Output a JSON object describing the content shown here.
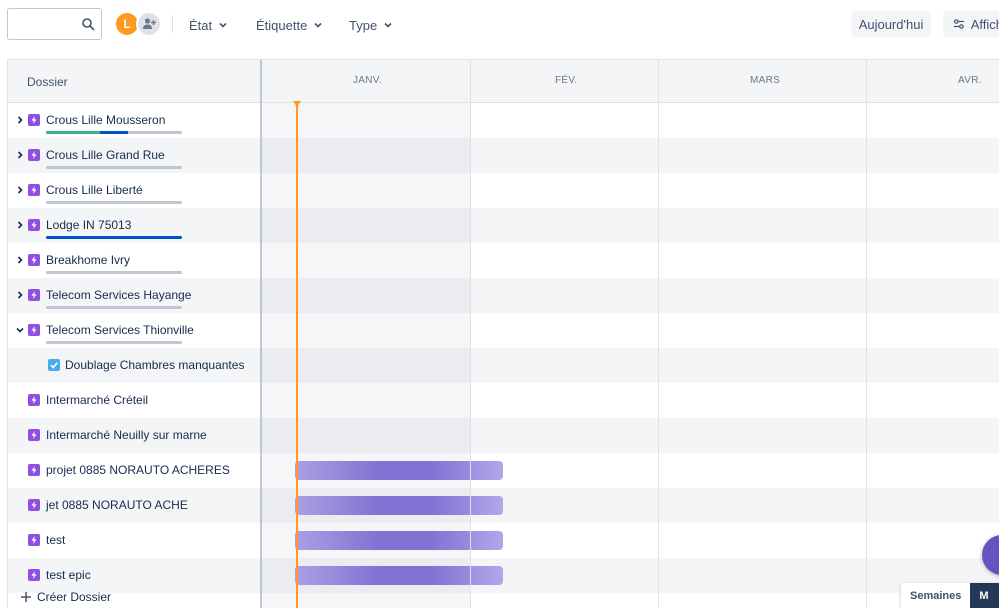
{
  "toolbar": {
    "search_placeholder": "",
    "avatar_initial": "L",
    "filters": [
      "État",
      "Étiquette",
      "Type"
    ],
    "today_label": "Aujourd'hui",
    "view_label": "Affich"
  },
  "grid": {
    "header_label": "Dossier",
    "months": [
      "JANV.",
      "FÉV.",
      "MARS",
      "AVR."
    ]
  },
  "rows": [
    {
      "label": "Crous Lille Mousseron",
      "expand": "collapsed",
      "progress": {
        "done": 0.4,
        "in_progress": 0.2
      }
    },
    {
      "label": "Crous Lille Grand Rue",
      "expand": "collapsed",
      "progress": {
        "done": 0,
        "in_progress": 0
      }
    },
    {
      "label": "Crous Lille Liberté",
      "expand": "collapsed",
      "progress": {
        "done": 0,
        "in_progress": 0
      }
    },
    {
      "label": "Lodge IN 75013",
      "expand": "collapsed",
      "progress": {
        "done": 0,
        "in_progress": 1
      }
    },
    {
      "label": "Breakhome Ivry",
      "expand": "collapsed",
      "progress": {
        "done": 0,
        "in_progress": 0
      }
    },
    {
      "label": "Telecom Services Hayange",
      "expand": "collapsed",
      "progress": {
        "done": 0,
        "in_progress": 0
      }
    },
    {
      "label": "Telecom Services Thionville",
      "expand": "expanded",
      "progress": {
        "done": 0,
        "in_progress": 0
      }
    },
    {
      "label": "Doublage Chambres manquantes",
      "child": true
    },
    {
      "label": "Intermarché Créteil"
    },
    {
      "label": "Intermarché Neuilly sur marne"
    },
    {
      "label": "projet 0885 NORAUTO ACHERES",
      "bar": true
    },
    {
      "label": "jet 0885 NORAUTO ACHE",
      "bar": true
    },
    {
      "label": "test",
      "bar": true
    },
    {
      "label": "test epic",
      "bar": true
    }
  ],
  "create_label": "Créer Dossier",
  "zoom": {
    "options": [
      "Semaines",
      "M"
    ],
    "active": "M"
  },
  "colors": {
    "epic": "#904ee2",
    "today": "#ff991f",
    "done": "#36b37e",
    "in_progress": "#0052cc",
    "bar": "#8777d9"
  }
}
